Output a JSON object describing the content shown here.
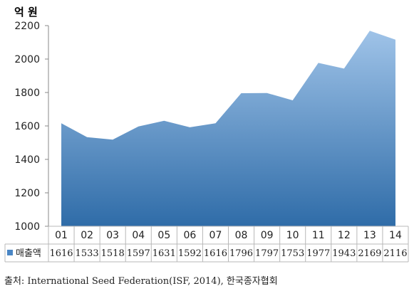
{
  "chart_data": {
    "type": "area",
    "unit_label": "억 원",
    "categories": [
      "01",
      "02",
      "03",
      "04",
      "05",
      "06",
      "07",
      "08",
      "09",
      "10",
      "11",
      "12",
      "13",
      "14"
    ],
    "series": [
      {
        "name": "매출액",
        "values": [
          1616,
          1533,
          1518,
          1597,
          1631,
          1592,
          1616,
          1796,
          1797,
          1753,
          1977,
          1943,
          2169,
          2116
        ]
      }
    ],
    "ylim": [
      1000,
      2200
    ],
    "yticks": [
      1000,
      1200,
      1400,
      1600,
      1800,
      2000,
      2200
    ],
    "grid": false,
    "data_table": true,
    "colors": {
      "area_top": "#9fc3e8",
      "area_bottom": "#2f6ca8",
      "legend_marker": "#4a86c5"
    }
  },
  "source_text": "출처: International Seed Federation(ISF, 2014), 한국종자협회"
}
